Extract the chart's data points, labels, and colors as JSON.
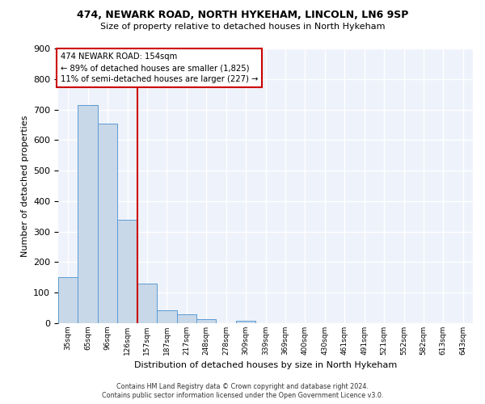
{
  "title1": "474, NEWARK ROAD, NORTH HYKEHAM, LINCOLN, LN6 9SP",
  "title2": "Size of property relative to detached houses in North Hykeham",
  "xlabel": "Distribution of detached houses by size in North Hykeham",
  "ylabel": "Number of detached properties",
  "footer1": "Contains HM Land Registry data © Crown copyright and database right 2024.",
  "footer2": "Contains public sector information licensed under the Open Government Licence v3.0.",
  "bins": [
    "35sqm",
    "65sqm",
    "96sqm",
    "126sqm",
    "157sqm",
    "187sqm",
    "217sqm",
    "248sqm",
    "278sqm",
    "309sqm",
    "339sqm",
    "369sqm",
    "400sqm",
    "430sqm",
    "461sqm",
    "491sqm",
    "521sqm",
    "552sqm",
    "582sqm",
    "613sqm",
    "643sqm"
  ],
  "values": [
    150,
    715,
    655,
    340,
    130,
    42,
    30,
    12,
    0,
    8,
    0,
    0,
    0,
    0,
    0,
    0,
    0,
    0,
    0,
    0,
    0
  ],
  "property_line_bin_index": 4,
  "annotation_line1": "474 NEWARK ROAD: 154sqm",
  "annotation_line2": "← 89% of detached houses are smaller (1,825)",
  "annotation_line3": "11% of semi-detached houses are larger (227) →",
  "bar_color": "#c8d8e8",
  "bar_edge_color": "#5b9bd5",
  "line_color": "#cc0000",
  "annotation_box_edge_color": "#cc0000",
  "background_color": "#eef2fb",
  "grid_color": "#ffffff",
  "ylim": [
    0,
    900
  ],
  "yticks": [
    0,
    100,
    200,
    300,
    400,
    500,
    600,
    700,
    800,
    900
  ]
}
